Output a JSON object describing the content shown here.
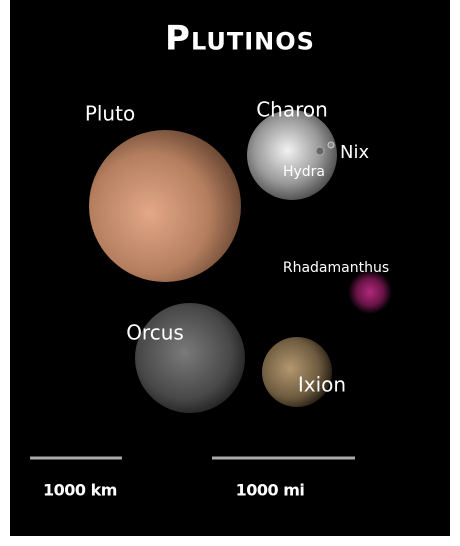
{
  "title": "Plutinos",
  "bodies": [
    {
      "label": "Pluto"
    },
    {
      "label": "Charon"
    },
    {
      "label": "Nix"
    },
    {
      "label": "Hydra"
    },
    {
      "label": "Rhadamanthus"
    },
    {
      "label": "Orcus"
    },
    {
      "label": "Ixion"
    }
  ],
  "scale_bars": [
    {
      "label": "1000 km"
    },
    {
      "label": "1000 mi"
    }
  ]
}
